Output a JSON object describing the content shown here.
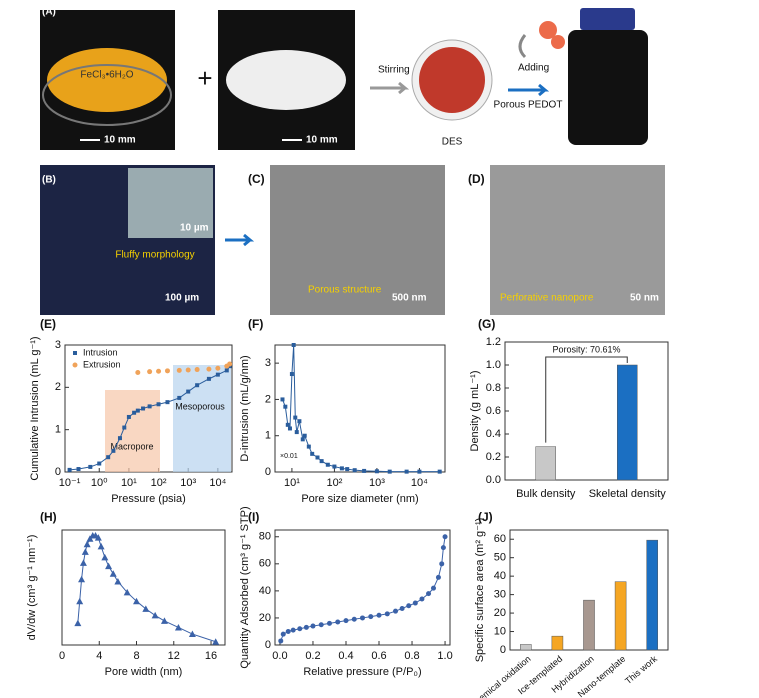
{
  "panels": {
    "a": {
      "letter": "(A)",
      "salt": "FeCl₃•6H₂O",
      "scale1": "10 mm",
      "scale2": "10 mm",
      "plus": "+",
      "stirring": "Stirring",
      "des": "DES",
      "adding": "Adding",
      "product": "Porous PEDOT"
    },
    "b": {
      "letter": "(B)",
      "caption": "Fluffy morphology",
      "inset_scale": "10 µm",
      "scale": "100 µm"
    },
    "c": {
      "letter": "(C)",
      "caption": "Porous structure",
      "scale": "500 nm"
    },
    "d": {
      "letter": "(D)",
      "caption": "Perforative nanopore",
      "scale": "50 nm"
    }
  },
  "chart_data": [
    {
      "type": "line",
      "letter": "(E)",
      "x_label": "Pressure (psia)",
      "y_label": "Cumulative Intrusion (mL g⁻¹)",
      "xscale": "log",
      "xlim": [
        0.07,
        30000
      ],
      "ylim": [
        0,
        3
      ],
      "xticks": [
        {
          "value": 0.1,
          "label": "10⁻¹"
        },
        {
          "value": 1,
          "label": "10⁰"
        },
        {
          "value": 10,
          "label": "10¹"
        },
        {
          "value": 100,
          "label": "10²"
        },
        {
          "value": 1000,
          "label": "10³"
        },
        {
          "value": 10000,
          "label": "10⁴"
        }
      ],
      "yticks": [
        0,
        1,
        2,
        3
      ],
      "legend": "top-left",
      "annotations": [
        "Macropore",
        "Mesoporous"
      ],
      "series": [
        {
          "name": "Intrusion",
          "color": "#2a5d9c",
          "marker": "square",
          "line": true,
          "x": [
            0.1,
            0.2,
            0.5,
            1,
            2,
            3,
            5,
            7,
            10,
            15,
            20,
            30,
            50,
            100,
            200,
            500,
            1000,
            2000,
            5000,
            10000,
            20000,
            25000
          ],
          "values": [
            0.05,
            0.07,
            0.12,
            0.2,
            0.35,
            0.5,
            0.8,
            1.05,
            1.3,
            1.4,
            1.45,
            1.5,
            1.55,
            1.6,
            1.65,
            1.75,
            1.9,
            2.05,
            2.2,
            2.3,
            2.4,
            2.5
          ]
        },
        {
          "name": "Extrusion",
          "color": "#f0a35a",
          "marker": "circle",
          "line": false,
          "x": [
            20,
            50,
            100,
            200,
            500,
            1000,
            2000,
            5000,
            10000,
            20000,
            25000
          ],
          "values": [
            2.35,
            2.37,
            2.38,
            2.39,
            2.4,
            2.41,
            2.42,
            2.43,
            2.45,
            2.5,
            2.55
          ]
        }
      ]
    },
    {
      "type": "scatter",
      "letter": "(F)",
      "x_label": "Pore size diameter (nm)",
      "y_label": "D-intrusion (mL/g/nm)",
      "xscale": "log",
      "xlim": [
        4,
        40000
      ],
      "ylim": [
        0,
        3.5
      ],
      "xticks": [
        {
          "value": 10,
          "label": "10¹"
        },
        {
          "value": 100,
          "label": "10²"
        },
        {
          "value": 1000,
          "label": "10³"
        },
        {
          "value": 10000,
          "label": "10⁴"
        }
      ],
      "yticks": [
        0,
        1,
        2,
        3
      ],
      "annotations": [
        "×0.01"
      ],
      "series": [
        {
          "color": "#2a5d9c",
          "marker": "square",
          "line": true,
          "x": [
            6,
            7,
            8,
            9,
            10,
            11,
            12,
            13,
            15,
            18,
            20,
            25,
            30,
            40,
            50,
            70,
            100,
            150,
            200,
            300,
            500,
            1000,
            2000,
            5000,
            10000,
            30000
          ],
          "values": [
            2.0,
            1.8,
            1.3,
            1.2,
            2.7,
            3.5,
            1.5,
            1.1,
            1.4,
            0.9,
            1.0,
            0.7,
            0.5,
            0.4,
            0.3,
            0.2,
            0.15,
            0.1,
            0.08,
            0.05,
            0.03,
            0.02,
            0.01,
            0.01,
            0.01,
            0.01
          ]
        }
      ]
    },
    {
      "type": "bar",
      "letter": "(G)",
      "y_label": "Density (g mL⁻¹)",
      "categories": [
        "Bulk density",
        "Skeletal density"
      ],
      "values": [
        0.29,
        1.0
      ],
      "colors": [
        "#c8c8c8",
        "#1b6fc2"
      ],
      "ylim": [
        0,
        1.2
      ],
      "yticks": [
        {
          "value": 0,
          "label": "0.0"
        },
        {
          "value": 0.2,
          "label": "0.2"
        },
        {
          "value": 0.4,
          "label": "0.4"
        },
        {
          "value": 0.6,
          "label": "0.6"
        },
        {
          "value": 0.8,
          "label": "0.8"
        },
        {
          "value": 1,
          "label": "1.0"
        },
        {
          "value": 1.2,
          "label": "1.2"
        }
      ],
      "annotations": [
        "Porosity: 70.61%"
      ]
    },
    {
      "type": "scatter",
      "letter": "(H)",
      "x_label": "Pore width (nm)",
      "y_label": "dV/dw (cm³ g⁻¹ nm⁻¹)",
      "xlim": [
        0,
        17.5
      ],
      "ylim": [
        0,
        1.05
      ],
      "xticks": [
        0,
        4,
        8,
        12,
        16
      ],
      "series": [
        {
          "color": "#3b62a8",
          "marker": "triangle",
          "line": true,
          "x": [
            1.7,
            1.9,
            2.1,
            2.3,
            2.5,
            2.7,
            3.0,
            3.3,
            3.6,
            3.9,
            4.2,
            4.6,
            5,
            5.5,
            6,
            7,
            8,
            9,
            10,
            11,
            12.5,
            14,
            16.5
          ],
          "values": [
            0.2,
            0.4,
            0.6,
            0.75,
            0.85,
            0.92,
            0.97,
            1.0,
            1.0,
            0.98,
            0.9,
            0.8,
            0.72,
            0.65,
            0.58,
            0.48,
            0.4,
            0.33,
            0.27,
            0.22,
            0.16,
            0.1,
            0.03
          ]
        }
      ]
    },
    {
      "type": "scatter",
      "letter": "(I)",
      "x_label": "Relative pressure (P/P₀)",
      "y_label": "Quantity Adsorbed (cm³ g⁻¹ STP)",
      "xlim": [
        -0.03,
        1.03
      ],
      "ylim": [
        0,
        85
      ],
      "xticks": [
        {
          "value": 0,
          "label": "0.0"
        },
        {
          "value": 0.2,
          "label": "0.2"
        },
        {
          "value": 0.4,
          "label": "0.4"
        },
        {
          "value": 0.6,
          "label": "0.6"
        },
        {
          "value": 0.8,
          "label": "0.8"
        },
        {
          "value": 1,
          "label": "1.0"
        }
      ],
      "yticks": [
        0,
        20,
        40,
        60,
        80
      ],
      "series": [
        {
          "color": "#3b62a8",
          "marker": "circle",
          "line": true,
          "x": [
            0.005,
            0.02,
            0.05,
            0.08,
            0.12,
            0.16,
            0.2,
            0.25,
            0.3,
            0.35,
            0.4,
            0.45,
            0.5,
            0.55,
            0.6,
            0.65,
            0.7,
            0.74,
            0.78,
            0.82,
            0.86,
            0.9,
            0.93,
            0.96,
            0.98,
            0.99,
            1.0
          ],
          "values": [
            3,
            8,
            10,
            11,
            12,
            13,
            14,
            15,
            16,
            17,
            18,
            19,
            20,
            21,
            22,
            23,
            25,
            27,
            29,
            31,
            34,
            38,
            42,
            50,
            60,
            72,
            80
          ]
        }
      ]
    },
    {
      "type": "bar",
      "letter": "(J)",
      "y_label": "Specific surface area (m² g⁻¹)",
      "categories": [
        "Chemical oxidation",
        "Ice-templated",
        "Hybridization",
        "Nano-template",
        "This work"
      ],
      "values": [
        3,
        7.5,
        27,
        37,
        59.5
      ],
      "colors": [
        "#c8c8c8",
        "#f5a623",
        "#a89890",
        "#f5a623",
        "#1b6fc2"
      ],
      "ylim": [
        0,
        65
      ],
      "yticks": [
        0,
        10,
        20,
        30,
        40,
        50,
        60
      ],
      "rotate_labels": true
    }
  ]
}
